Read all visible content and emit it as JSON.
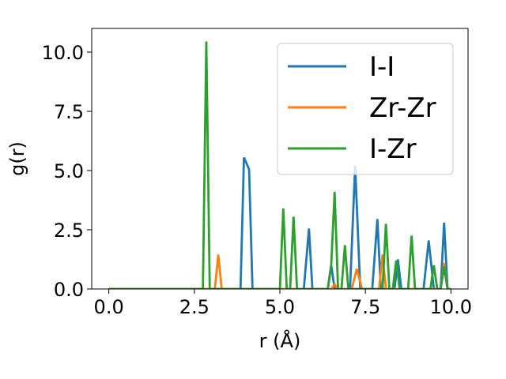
{
  "chart_data": {
    "type": "line",
    "xlabel": "r (Å)",
    "ylabel": "g(r)",
    "xlim": [
      -0.5,
      10.5
    ],
    "ylim": [
      0.0,
      11.0
    ],
    "xticks": [
      "0.0",
      "2.5",
      "5.0",
      "7.5",
      "10.0"
    ],
    "yticks": [
      "0.0",
      "2.5",
      "5.0",
      "7.5",
      "10.0"
    ],
    "grid": false,
    "legend_position": "top-right",
    "series": [
      {
        "name": "I-I",
        "color": "#1f77b4",
        "x": [
          0,
          3.85,
          3.95,
          4.1,
          4.2,
          4.3,
          5.7,
          5.85,
          5.95,
          6.4,
          6.5,
          6.6,
          7.05,
          7.2,
          7.35,
          7.7,
          7.85,
          7.95,
          8.35,
          8.45,
          8.55,
          9.2,
          9.35,
          9.5,
          9.7,
          9.8,
          9.9,
          10.0
        ],
        "y": [
          0,
          0,
          5.55,
          5.05,
          0,
          0,
          0,
          2.55,
          0,
          0,
          1.0,
          0,
          0,
          5.2,
          0,
          0,
          2.95,
          0,
          0,
          1.25,
          0,
          0,
          2.05,
          0,
          0,
          2.8,
          0,
          0
        ]
      },
      {
        "name": "Zr-Zr",
        "color": "#ff7f0e",
        "x": [
          0,
          3.1,
          3.2,
          3.3,
          6.5,
          6.6,
          6.7,
          7.1,
          7.25,
          7.4,
          7.9,
          8.0,
          8.1,
          9.7,
          9.8,
          9.9,
          10.0
        ],
        "y": [
          0,
          0,
          1.45,
          0,
          0,
          0.2,
          0,
          0,
          0.85,
          0,
          0,
          1.45,
          0,
          0,
          1.1,
          0,
          0
        ]
      },
      {
        "name": "I-Zr",
        "color": "#2ca02c",
        "x": [
          0,
          2.75,
          2.85,
          2.95,
          5.0,
          5.1,
          5.2,
          5.3,
          5.4,
          5.5,
          6.4,
          6.5,
          6.6,
          6.7,
          6.8,
          6.9,
          7.0,
          7.9,
          8.0,
          8.1,
          8.2,
          8.3,
          8.4,
          8.5,
          8.6,
          8.75,
          8.85,
          8.95,
          9.4,
          9.5,
          9.6,
          9.7,
          9.8,
          9.9,
          10.0
        ],
        "y": [
          0,
          0,
          10.45,
          0,
          0,
          3.4,
          0,
          0,
          3.05,
          0,
          0,
          1.0,
          4.1,
          0,
          0,
          1.85,
          0,
          0,
          0,
          2.75,
          0,
          0,
          1.2,
          0,
          0,
          0,
          2.25,
          0,
          0,
          1.0,
          0,
          0,
          0.95,
          0,
          0
        ]
      }
    ]
  }
}
